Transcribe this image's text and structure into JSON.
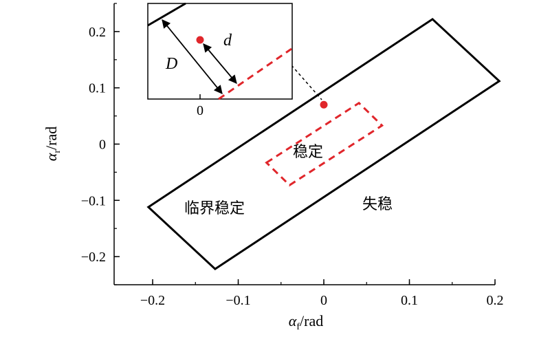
{
  "chart_data": {
    "type": "diagram-plot",
    "xlabel": {
      "symbol": "α",
      "subscript": "f",
      "unit": "/rad"
    },
    "ylabel": {
      "symbol": "α",
      "subscript": "r",
      "unit": "/rad"
    },
    "xlim": [
      -0.245,
      0.2
    ],
    "ylim": [
      -0.25,
      0.25
    ],
    "xticks": [
      -0.2,
      -0.1,
      0,
      0.1,
      0.2
    ],
    "xtick_labels": [
      "−0.2",
      "−0.1",
      "0",
      "0.1",
      "0.2"
    ],
    "yticks": [
      -0.2,
      -0.1,
      0,
      0.1,
      0.2
    ],
    "ytick_labels": [
      "−0.2",
      "−0.1",
      "0",
      "0.1",
      "0.2"
    ],
    "minor_step": 0.05,
    "grid": false,
    "regions": [
      {
        "name": "critical-stability-region",
        "style": "solid",
        "color": "#000000",
        "points": [
          [
            -0.205,
            -0.112
          ],
          [
            0.127,
            0.222
          ],
          [
            0.205,
            0.112
          ],
          [
            -0.127,
            -0.222
          ]
        ]
      },
      {
        "name": "stable-region",
        "style": "dashed",
        "color": "#e0262b",
        "points": [
          [
            -0.067,
            -0.033
          ],
          [
            0.041,
            0.073
          ],
          [
            0.068,
            0.033
          ],
          [
            -0.04,
            -0.073
          ]
        ]
      }
    ],
    "point": {
      "x": 0,
      "y": 0.07,
      "color": "#e0262b"
    },
    "labels": {
      "stable": "稳定",
      "critical": "临界稳定",
      "unstable": "失稳"
    },
    "inset": {
      "tick_label": "0",
      "D_label": "D",
      "d_label": "d"
    }
  }
}
